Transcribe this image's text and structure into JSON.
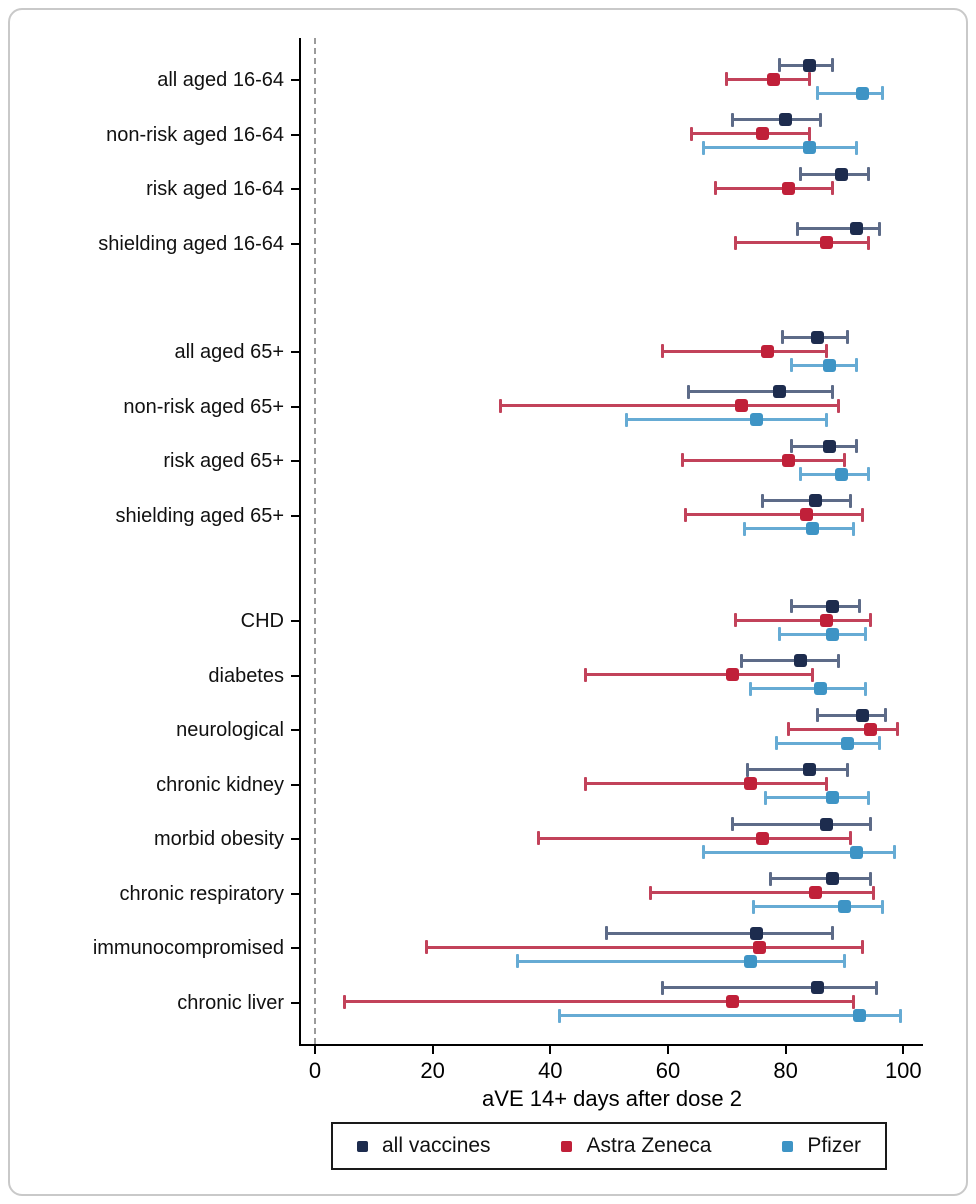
{
  "figure": {
    "background": "#ffffff",
    "card_border_color": "#c9c9c9",
    "axis_color": "#000000",
    "zero_line": {
      "x": 0,
      "style": "dashed",
      "color": "#9b9b9b"
    }
  },
  "chart_data": {
    "type": "scatter",
    "subtype": "forest-dot-whisker",
    "title": "",
    "xlabel": "aVE 14+ days after dose 2",
    "ylabel": "",
    "xlim": [
      -2,
      104
    ],
    "x_ticks": [
      0,
      20,
      40,
      60,
      80,
      100
    ],
    "grid": false,
    "legend_position": "bottom",
    "series": [
      {
        "name": "all vaccines",
        "marker_color": "#1d2c4e",
        "line_color": "#5d6b88"
      },
      {
        "name": "Astra Zeneca",
        "marker_color": "#c02039",
        "line_color": "#c2425a"
      },
      {
        "name": "Pfizer",
        "marker_color": "#3e94c5",
        "line_color": "#66abd4"
      }
    ],
    "value_format": "center [low, high] in aVE percent",
    "groups": [
      {
        "rows": [
          {
            "label": "all aged 16-64",
            "values": [
              [
                84,
                79,
                88
              ],
              [
                78,
                70,
                84
              ],
              [
                93,
                85.5,
                96.5
              ]
            ]
          },
          {
            "label": "non-risk aged 16-64",
            "values": [
              [
                80,
                71,
                86
              ],
              [
                76,
                64,
                84
              ],
              [
                84,
                66,
                92
              ]
            ]
          },
          {
            "label": "risk aged 16-64",
            "values": [
              [
                89.5,
                82.5,
                94
              ],
              [
                80.5,
                68,
                88
              ],
              null
            ]
          },
          {
            "label": "shielding aged 16-64",
            "values": [
              [
                92,
                82,
                96
              ],
              [
                87,
                71.5,
                94
              ],
              null
            ]
          }
        ]
      },
      {
        "rows": [
          {
            "label": "all aged 65+",
            "values": [
              [
                85.5,
                79.5,
                90.5
              ],
              [
                77,
                59,
                87
              ],
              [
                87.5,
                81,
                92
              ]
            ]
          },
          {
            "label": "non-risk aged 65+",
            "values": [
              [
                79,
                63.5,
                88
              ],
              [
                72.5,
                31.5,
                89
              ],
              [
                75,
                53,
                87
              ]
            ]
          },
          {
            "label": "risk aged 65+",
            "values": [
              [
                87.5,
                81,
                92
              ],
              [
                80.5,
                62.5,
                90
              ],
              [
                89.5,
                82.5,
                94
              ]
            ]
          },
          {
            "label": "shielding aged 65+",
            "values": [
              [
                85,
                76,
                91
              ],
              [
                83.5,
                63,
                93
              ],
              [
                84.5,
                73,
                91.5
              ]
            ]
          }
        ]
      },
      {
        "rows": [
          {
            "label": "CHD",
            "values": [
              [
                88,
                81,
                92.5
              ],
              [
                87,
                71.5,
                94.5
              ],
              [
                88,
                79,
                93.5
              ]
            ]
          },
          {
            "label": "diabetes",
            "values": [
              [
                82.5,
                72.5,
                89
              ],
              [
                71,
                46,
                84.5
              ],
              [
                86,
                74,
                93.5
              ]
            ]
          },
          {
            "label": "neurological",
            "values": [
              [
                93,
                85.5,
                97
              ],
              [
                94.5,
                80.5,
                99
              ],
              [
                90.5,
                78.5,
                96
              ]
            ]
          },
          {
            "label": "chronic kidney",
            "values": [
              [
                84,
                73.5,
                90.5
              ],
              [
                74,
                46,
                87
              ],
              [
                88,
                76.5,
                94
              ]
            ]
          },
          {
            "label": "morbid obesity",
            "values": [
              [
                87,
                71,
                94.5
              ],
              [
                76,
                38,
                91
              ],
              [
                92,
                66,
                98.5
              ]
            ]
          },
          {
            "label": "chronic respiratory",
            "values": [
              [
                88,
                77.5,
                94.5
              ],
              [
                85,
                57,
                95
              ],
              [
                90,
                74.5,
                96.5
              ]
            ]
          },
          {
            "label": "immunocompromised",
            "values": [
              [
                75,
                49.5,
                88
              ],
              [
                75.5,
                19,
                93
              ],
              [
                74,
                34.5,
                90
              ]
            ]
          },
          {
            "label": "chronic liver",
            "values": [
              [
                85.5,
                59,
                95.5
              ],
              [
                71,
                5,
                91.5
              ],
              [
                92.5,
                41.5,
                99.5
              ]
            ]
          }
        ]
      }
    ]
  }
}
